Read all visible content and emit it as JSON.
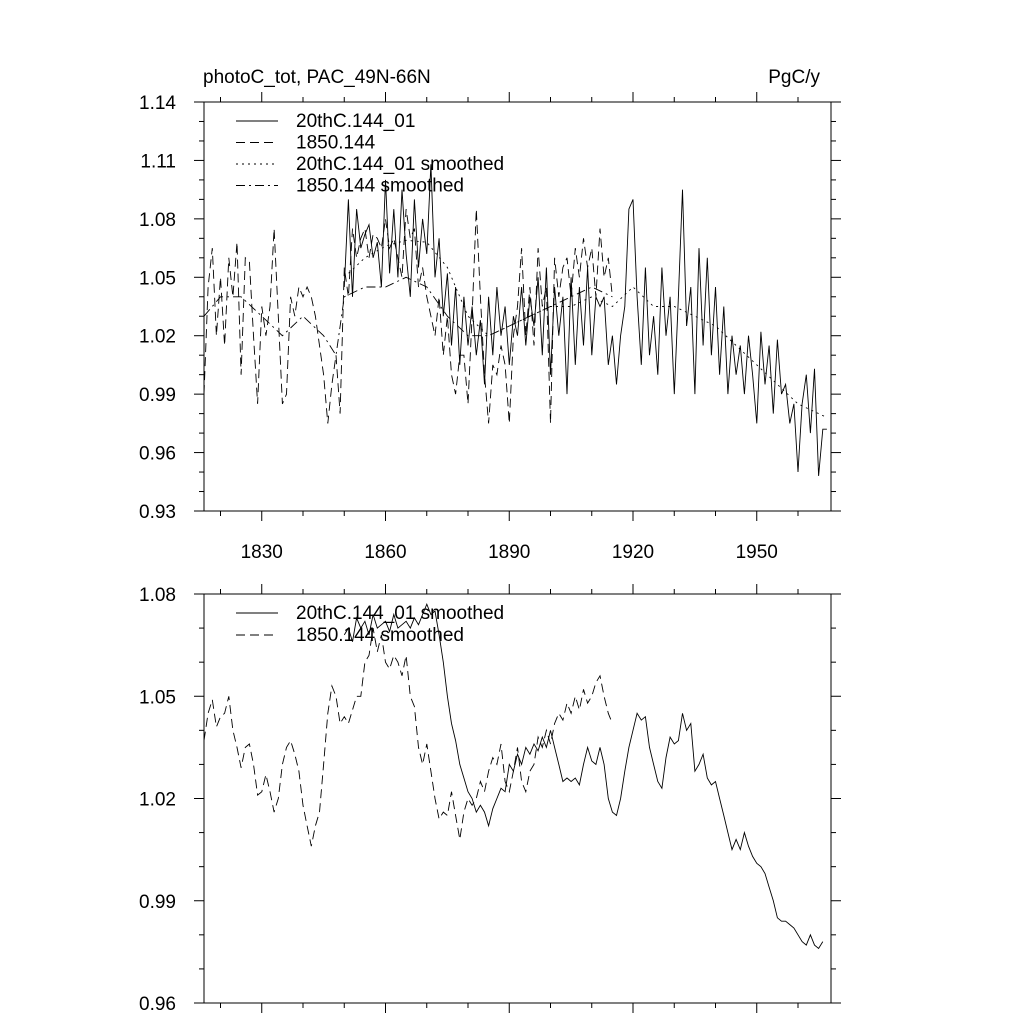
{
  "chart_data": [
    {
      "type": "line",
      "title": "photoC_tot, PAC_49N-66N",
      "units": "PgC/y",
      "xlabel": "",
      "ylabel": "",
      "xlim": [
        1816,
        1968
      ],
      "ylim": [
        0.93,
        1.14
      ],
      "xticks": [
        1830,
        1860,
        1890,
        1920,
        1950
      ],
      "xtick_labels": [
        "1830",
        "1860",
        "1890",
        "1920",
        "1950"
      ],
      "yticks": [
        0.93,
        0.96,
        0.99,
        1.02,
        1.05,
        1.08,
        1.11,
        1.14
      ],
      "ytick_labels": [
        "0.93",
        "0.96",
        "0.99",
        "1.02",
        "1.05",
        "1.08",
        "1.11",
        "1.14"
      ],
      "grid": false,
      "legend_position": "top-left",
      "series": [
        {
          "name": "20thC.144_01",
          "style": "solid",
          "x": [
            1850,
            1851,
            1852,
            1853,
            1854,
            1855,
            1856,
            1857,
            1858,
            1859,
            1860,
            1861,
            1862,
            1863,
            1864,
            1865,
            1866,
            1867,
            1868,
            1869,
            1870,
            1871,
            1872,
            1873,
            1874,
            1875,
            1876,
            1877,
            1878,
            1879,
            1880,
            1881,
            1882,
            1883,
            1884,
            1885,
            1886,
            1887,
            1888,
            1889,
            1890,
            1891,
            1892,
            1893,
            1894,
            1895,
            1896,
            1897,
            1898,
            1899,
            1900,
            1901,
            1902,
            1903,
            1904,
            1905,
            1906,
            1907,
            1908,
            1909,
            1910,
            1911,
            1912,
            1913,
            1914,
            1915,
            1916,
            1917,
            1918,
            1919,
            1920,
            1921,
            1922,
            1923,
            1924,
            1925,
            1926,
            1927,
            1928,
            1929,
            1930,
            1931,
            1932,
            1933,
            1934,
            1935,
            1936,
            1937,
            1938,
            1939,
            1940,
            1941,
            1942,
            1943,
            1944,
            1945,
            1946,
            1947,
            1948,
            1949,
            1950,
            1951,
            1952,
            1953,
            1954,
            1955,
            1956,
            1957,
            1958,
            1959,
            1960,
            1961,
            1962,
            1963,
            1964,
            1965,
            1966,
            1967
          ],
          "values": [
            1.045,
            1.09,
            1.04,
            1.085,
            1.065,
            1.072,
            1.077,
            1.06,
            1.068,
            1.045,
            1.1,
            1.052,
            1.085,
            1.05,
            1.095,
            1.062,
            1.04,
            1.09,
            1.055,
            1.08,
            1.062,
            1.108,
            1.05,
            1.07,
            1.03,
            1.052,
            1.015,
            1.045,
            1.005,
            1.04,
            1.015,
            1.035,
            1.01,
            1.028,
            0.995,
            1.04,
            1.01,
            1.045,
            1.02,
            1.035,
            1.005,
            1.03,
            1.02,
            1.045,
            1.015,
            1.04,
            1.025,
            1.05,
            1.01,
            1.055,
            1.0,
            1.045,
            1.02,
            1.04,
            0.99,
            1.05,
            1.005,
            1.045,
            1.015,
            1.055,
            1.01,
            1.04,
            1.035,
            1.04,
            1.005,
            1.02,
            0.995,
            1.02,
            1.035,
            1.085,
            1.09,
            1.04,
            1.005,
            1.055,
            1.01,
            1.03,
            1.0,
            1.055,
            1.02,
            1.04,
            0.99,
            1.04,
            1.095,
            1.025,
            1.045,
            0.99,
            1.065,
            1.015,
            1.06,
            1.01,
            1.045,
            1.0,
            1.035,
            0.99,
            1.02,
            1.0,
            1.015,
            0.99,
            1.02,
            1.0,
            0.975,
            1.022,
            0.995,
            1.015,
            0.98,
            1.018,
            0.99,
            0.995,
            0.975,
            0.985,
            0.95,
            0.985,
            1.0,
            0.97,
            1.003,
            0.948,
            0.972,
            0.972
          ]
        },
        {
          "name": "1850.144",
          "style": "dashed",
          "x": [
            1816,
            1817,
            1818,
            1819,
            1820,
            1821,
            1822,
            1823,
            1824,
            1825,
            1826,
            1827,
            1828,
            1829,
            1830,
            1831,
            1832,
            1833,
            1834,
            1835,
            1836,
            1837,
            1838,
            1839,
            1840,
            1841,
            1842,
            1843,
            1844,
            1845,
            1846,
            1847,
            1848,
            1849,
            1850,
            1851,
            1852,
            1853,
            1854,
            1855,
            1856,
            1857,
            1858,
            1859,
            1860,
            1861,
            1862,
            1863,
            1864,
            1865,
            1866,
            1867,
            1868,
            1869,
            1870,
            1871,
            1872,
            1873,
            1874,
            1875,
            1876,
            1877,
            1878,
            1879,
            1880,
            1881,
            1882,
            1883,
            1884,
            1885,
            1886,
            1887,
            1888,
            1889,
            1890,
            1891,
            1892,
            1893,
            1894,
            1895,
            1896,
            1897,
            1898,
            1899,
            1900,
            1901,
            1902,
            1903,
            1904,
            1905,
            1906,
            1907,
            1908,
            1909,
            1910,
            1911,
            1912,
            1913,
            1914,
            1915
          ],
          "values": [
            0.99,
            1.045,
            1.065,
            1.02,
            1.05,
            1.015,
            1.06,
            1.04,
            1.068,
            1.0,
            1.06,
            1.058,
            1.02,
            0.985,
            1.035,
            1.02,
            1.035,
            1.075,
            1.03,
            0.985,
            0.99,
            1.04,
            1.03,
            1.045,
            1.04,
            1.045,
            1.04,
            1.03,
            1.015,
            1.0,
            0.975,
            0.995,
            1.01,
            0.98,
            1.055,
            1.04,
            1.075,
            1.06,
            1.07,
            1.075,
            1.06,
            1.072,
            1.07,
            1.065,
            1.08,
            1.065,
            1.07,
            1.06,
            1.05,
            1.085,
            1.07,
            1.075,
            1.045,
            1.055,
            1.04,
            1.03,
            1.02,
            1.04,
            1.01,
            1.03,
            1.0,
            0.99,
            1.01,
            1.01,
            0.985,
            1.03,
            1.085,
            1.04,
            1.0,
            0.975,
            1.005,
            1.0,
            1.015,
            1.005,
            0.975,
            1.02,
            1.035,
            1.065,
            1.02,
            1.045,
            1.015,
            1.065,
            1.035,
            1.045,
            0.975,
            1.06,
            1.04,
            1.055,
            1.06,
            1.04,
            1.065,
            1.05,
            1.07,
            1.055,
            1.065,
            1.04,
            1.075,
            1.05,
            1.06,
            1.04
          ]
        },
        {
          "name": "20thC.144_01 smoothed",
          "style": "dotted",
          "x": [
            1850,
            1855,
            1860,
            1865,
            1870,
            1875,
            1880,
            1885,
            1890,
            1895,
            1900,
            1905,
            1910,
            1915,
            1920,
            1925,
            1930,
            1935,
            1940,
            1945,
            1950,
            1955,
            1960,
            1965,
            1967
          ],
          "values": [
            1.05,
            1.06,
            1.066,
            1.069,
            1.068,
            1.055,
            1.03,
            1.02,
            1.025,
            1.03,
            1.035,
            1.035,
            1.04,
            1.035,
            1.045,
            1.035,
            1.035,
            1.03,
            1.025,
            1.015,
            1.005,
            0.995,
            0.985,
            0.98,
            0.978
          ]
        },
        {
          "name": "1850.144 smoothed",
          "style": "dashdot",
          "x": [
            1816,
            1820,
            1825,
            1830,
            1835,
            1840,
            1845,
            1848,
            1850,
            1855,
            1860,
            1865,
            1870,
            1875,
            1880,
            1885,
            1890,
            1895,
            1900,
            1905,
            1910,
            1915
          ],
          "values": [
            1.03,
            1.04,
            1.04,
            1.03,
            1.02,
            1.03,
            1.02,
            1.01,
            1.04,
            1.045,
            1.045,
            1.05,
            1.045,
            1.03,
            1.02,
            1.02,
            1.025,
            1.03,
            1.035,
            1.04,
            1.045,
            1.04
          ]
        }
      ]
    },
    {
      "type": "line",
      "title": "",
      "xlabel": "",
      "ylabel": "",
      "xlim": [
        1816,
        1968
      ],
      "ylim": [
        0.96,
        1.08
      ],
      "xticks": [
        1830,
        1860,
        1890,
        1920,
        1950
      ],
      "yticks": [
        0.96,
        0.99,
        1.02,
        1.05,
        1.08
      ],
      "ytick_labels": [
        "0.96",
        "0.99",
        "1.02",
        "1.05",
        "1.08"
      ],
      "grid": false,
      "legend_position": "top-left",
      "series": [
        {
          "name": "20thC.144_01 smoothed",
          "style": "solid",
          "x": [
            1850,
            1851,
            1852,
            1853,
            1854,
            1855,
            1856,
            1857,
            1858,
            1859,
            1860,
            1861,
            1862,
            1863,
            1864,
            1865,
            1866,
            1867,
            1868,
            1869,
            1870,
            1871,
            1872,
            1873,
            1874,
            1875,
            1876,
            1877,
            1878,
            1879,
            1880,
            1881,
            1882,
            1883,
            1884,
            1885,
            1886,
            1887,
            1888,
            1889,
            1890,
            1891,
            1892,
            1893,
            1894,
            1895,
            1896,
            1897,
            1898,
            1899,
            1900,
            1901,
            1902,
            1903,
            1904,
            1905,
            1906,
            1907,
            1908,
            1909,
            1910,
            1911,
            1912,
            1913,
            1914,
            1915,
            1916,
            1917,
            1918,
            1919,
            1920,
            1921,
            1922,
            1923,
            1924,
            1925,
            1926,
            1927,
            1928,
            1929,
            1930,
            1931,
            1932,
            1933,
            1934,
            1935,
            1936,
            1937,
            1938,
            1939,
            1940,
            1941,
            1942,
            1943,
            1944,
            1945,
            1946,
            1947,
            1948,
            1949,
            1950,
            1951,
            1952,
            1953,
            1954,
            1955,
            1956,
            1957,
            1958,
            1959,
            1960,
            1961,
            1962,
            1963,
            1964,
            1965,
            1966
          ],
          "values": [
            1.068,
            1.07,
            1.066,
            1.073,
            1.07,
            1.072,
            1.068,
            1.074,
            1.07,
            1.071,
            1.072,
            1.069,
            1.074,
            1.07,
            1.071,
            1.072,
            1.07,
            1.073,
            1.071,
            1.074,
            1.077,
            1.074,
            1.075,
            1.068,
            1.06,
            1.05,
            1.042,
            1.037,
            1.03,
            1.026,
            1.022,
            1.02,
            1.016,
            1.018,
            1.016,
            1.012,
            1.017,
            1.02,
            1.023,
            1.022,
            1.03,
            1.028,
            1.033,
            1.03,
            1.035,
            1.033,
            1.036,
            1.034,
            1.038,
            1.035,
            1.04,
            1.035,
            1.03,
            1.025,
            1.026,
            1.025,
            1.026,
            1.024,
            1.03,
            1.035,
            1.031,
            1.03,
            1.035,
            1.03,
            1.02,
            1.016,
            1.015,
            1.02,
            1.028,
            1.035,
            1.04,
            1.045,
            1.043,
            1.044,
            1.035,
            1.03,
            1.025,
            1.023,
            1.032,
            1.038,
            1.036,
            1.037,
            1.045,
            1.04,
            1.042,
            1.028,
            1.03,
            1.033,
            1.026,
            1.024,
            1.025,
            1.02,
            1.015,
            1.01,
            1.005,
            1.008,
            1.005,
            1.01,
            1.006,
            1.003,
            1.001,
            1.0,
            0.998,
            0.994,
            0.99,
            0.985,
            0.984,
            0.984,
            0.983,
            0.982,
            0.98,
            0.978,
            0.977,
            0.98,
            0.977,
            0.976,
            0.978
          ]
        },
        {
          "name": "1850.144 smoothed",
          "style": "dashed",
          "x": [
            1816,
            1817,
            1818,
            1819,
            1820,
            1821,
            1822,
            1823,
            1824,
            1825,
            1826,
            1827,
            1828,
            1829,
            1830,
            1831,
            1832,
            1833,
            1834,
            1835,
            1836,
            1837,
            1838,
            1839,
            1840,
            1841,
            1842,
            1843,
            1844,
            1845,
            1846,
            1847,
            1848,
            1849,
            1850,
            1851,
            1852,
            1853,
            1854,
            1855,
            1856,
            1857,
            1858,
            1859,
            1860,
            1861,
            1862,
            1863,
            1864,
            1865,
            1866,
            1867,
            1868,
            1869,
            1870,
            1871,
            1872,
            1873,
            1874,
            1875,
            1876,
            1877,
            1878,
            1879,
            1880,
            1881,
            1882,
            1883,
            1884,
            1885,
            1886,
            1887,
            1888,
            1889,
            1890,
            1891,
            1892,
            1893,
            1894,
            1895,
            1896,
            1897,
            1898,
            1899,
            1900,
            1901,
            1902,
            1903,
            1904,
            1905,
            1906,
            1907,
            1908,
            1909,
            1910,
            1911,
            1912,
            1913,
            1914,
            1915
          ],
          "values": [
            1.037,
            1.045,
            1.049,
            1.041,
            1.044,
            1.045,
            1.05,
            1.04,
            1.035,
            1.029,
            1.035,
            1.036,
            1.03,
            1.021,
            1.022,
            1.027,
            1.022,
            1.016,
            1.02,
            1.03,
            1.035,
            1.037,
            1.033,
            1.028,
            1.018,
            1.012,
            1.006,
            1.012,
            1.016,
            1.03,
            1.045,
            1.053,
            1.05,
            1.042,
            1.044,
            1.042,
            1.046,
            1.05,
            1.05,
            1.06,
            1.062,
            1.07,
            1.063,
            1.068,
            1.06,
            1.058,
            1.062,
            1.06,
            1.056,
            1.062,
            1.05,
            1.047,
            1.035,
            1.03,
            1.036,
            1.028,
            1.02,
            1.014,
            1.016,
            1.015,
            1.022,
            1.015,
            1.008,
            1.016,
            1.02,
            1.018,
            1.02,
            1.025,
            1.022,
            1.028,
            1.032,
            1.03,
            1.036,
            1.025,
            1.022,
            1.028,
            1.035,
            1.025,
            1.022,
            1.028,
            1.03,
            1.038,
            1.035,
            1.04,
            1.036,
            1.042,
            1.045,
            1.043,
            1.048,
            1.045,
            1.05,
            1.046,
            1.052,
            1.048,
            1.05,
            1.054,
            1.056,
            1.05,
            1.045,
            1.042
          ]
        }
      ]
    }
  ]
}
